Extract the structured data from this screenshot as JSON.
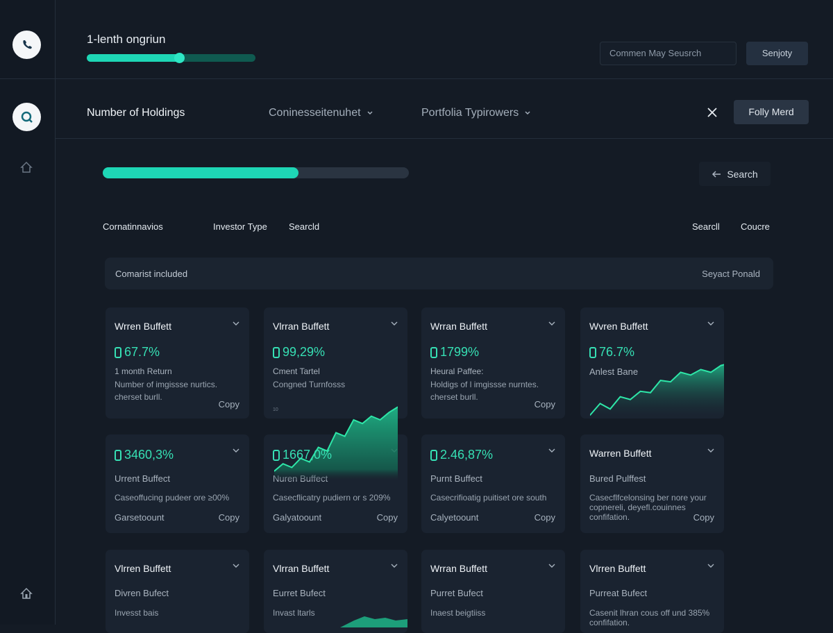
{
  "header": {
    "title": "1-lenth ongriun",
    "progress": 0.55,
    "search_placeholder": "Commen May Seusrch",
    "button_label": "Senjoty"
  },
  "filters": {
    "title": "Number of Holdings",
    "dropdown1": "Coninesseitenuhet",
    "dropdown2": "Portfolia Typirowers",
    "primary_button": "Folly Merd"
  },
  "main": {
    "progress": 0.64,
    "search_label": "Search",
    "tabs": [
      "Cornatinnavios",
      "Investor Type",
      "Searcld"
    ],
    "right_tabs": [
      "Searcll",
      "Coucre"
    ],
    "strip_left": "Comarist included",
    "strip_right": "Seyact Ponald"
  },
  "cards": {
    "c1": {
      "title": "Wrren Buffett",
      "value": "67.7%",
      "line1": "1 month Return",
      "line2": "Number of imgissse nurtics.",
      "line3": "cherset burll.",
      "copy": "Copy"
    },
    "c2": {
      "title": "Vlrran Buffett",
      "value": "99,29%",
      "line1": "Cment Tartel",
      "line2": "Congned Turnfosss",
      "tick": "10"
    },
    "c3": {
      "title": "Wrran Buffett",
      "value": "1799%",
      "line1": "Heural Paffee:",
      "line2": "Holdigs of l imgissse nurntes.",
      "line3": "cherset burll.",
      "copy": "Copy"
    },
    "c4": {
      "title": "Wvren Buffett",
      "value": "76.7%",
      "line1": "Anlest Bane"
    },
    "c5": {
      "value": "3460,3%",
      "line1": "Urrent Buffect",
      "line2": "Caseoffucing pudeer ore ≥00%",
      "foot": "Garsetoount",
      "copy": "Copy"
    },
    "c6": {
      "value": "1667,0%",
      "line1": "Nuren Buffect",
      "line2": "Casecflicatry pudiern or s 209%",
      "foot": "Galyatoount",
      "copy": "Copy"
    },
    "c7": {
      "value": "2.46,87%",
      "line1": "Purnt Buffect",
      "line2": "Casecrifioatig puitiset ore south",
      "foot": "Calyetoount",
      "copy": "Copy"
    },
    "c8": {
      "title": "Warren Buffett",
      "line1": "Bured Pulffest",
      "line2": "Casecflfcelonsing ber nore your",
      "line3": "copnereli, deyefl.couinnes",
      "line4": "confifation.",
      "copy": "Copy"
    },
    "c9": {
      "title": "Vlrren Buffett",
      "line1": "Divren Bufect",
      "line2": "Invesst bais"
    },
    "c10": {
      "title": "Vlrran Buffett",
      "line1": "Eurret Bufect",
      "line2": "Invast ltarls"
    },
    "c11": {
      "title": "Wrran Buffett",
      "line1": "Purret Bufect",
      "line2": "Inaest beigtiiss"
    },
    "c12": {
      "title": "Vlrren Buffett",
      "line1": "Purreat Bufect",
      "line2": "Casenit lhran cous off und 385%",
      "line3": "confifation."
    }
  },
  "colors": {
    "accent": "#1ed6b5",
    "value_green": "#36e0b4",
    "background": "#141b25",
    "card": "#1a2330"
  },
  "icons": {
    "sidebar_top": "phone-icon",
    "sidebar_second": "search-icon",
    "sidebar_home": "home-icon",
    "sidebar_bottom_home": "home-icon"
  },
  "chart_data": [
    {
      "type": "area",
      "y": [
        5,
        22,
        14,
        32,
        28,
        40,
        38,
        56,
        54,
        68,
        64,
        72,
        68,
        78,
        82
      ],
      "series": [
        {
          "name": "",
          "values": [
            5,
            22,
            14,
            32,
            28,
            40,
            38,
            56,
            54,
            68,
            64,
            72,
            68,
            78,
            82
          ]
        }
      ]
    },
    {
      "type": "area",
      "y": [
        10,
        18,
        14,
        24,
        20,
        36,
        32,
        52,
        48,
        66,
        62,
        70,
        66,
        74,
        80
      ],
      "series": [
        {
          "name": "",
          "values": [
            10,
            18,
            14,
            24,
            20,
            36,
            32,
            52,
            48,
            66,
            62,
            70,
            66,
            74,
            80
          ]
        }
      ]
    }
  ]
}
